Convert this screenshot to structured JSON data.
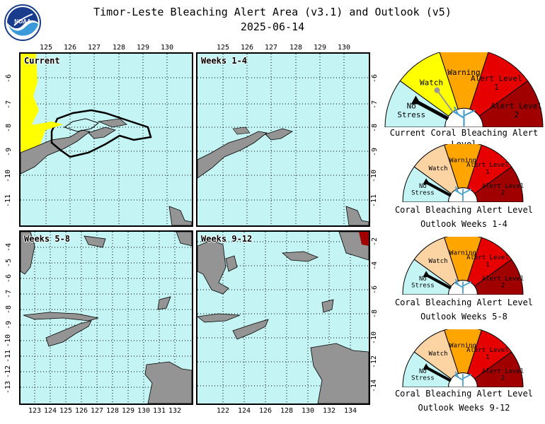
{
  "header": {
    "title_line1": "Timor-Leste Bleaching Alert Area (v3.1) and Outlook (v5)",
    "date": "2025-06-14",
    "logo_text": "NOAA"
  },
  "colors": {
    "ocean": "#c4f4f4",
    "land": "#949494",
    "watch": "#ffff00",
    "watch_light": "#fcd4a4",
    "warning": "#ffa500",
    "alert1": "#e60000",
    "alert2": "#a00000",
    "no_stress": "#c4f4f4",
    "coral_icon": "#48a0d0"
  },
  "panels": [
    {
      "id": "current",
      "label": "Current",
      "top_lon_labels": [
        "125",
        "126",
        "127",
        "128",
        "129",
        "130"
      ],
      "left_lat_labels": [
        "-6",
        "-7",
        "-8",
        "-9",
        "-10",
        "-11"
      ],
      "right_lat_labels": []
    },
    {
      "id": "weeks-1-4",
      "label": "Weeks 1-4",
      "top_lon_labels": [
        "125",
        "126",
        "127",
        "128",
        "129",
        "130"
      ],
      "left_lat_labels": [],
      "right_lat_labels": [
        "-6",
        "-7",
        "-8",
        "-9",
        "-10",
        "-11"
      ]
    },
    {
      "id": "weeks-5-8",
      "label": "Weeks 5-8",
      "bottom_lon_labels": [
        "123",
        "124",
        "125",
        "126",
        "127",
        "128",
        "129",
        "130",
        "131",
        "132"
      ],
      "left_lat_labels": [
        "-4",
        "-5",
        "-6",
        "-7",
        "-8",
        "-9",
        "-10",
        "-11",
        "-12",
        "-13"
      ],
      "right_lat_labels": []
    },
    {
      "id": "weeks-9-12",
      "label": "Weeks 9-12",
      "bottom_lon_labels": [
        "122",
        "124",
        "126",
        "128",
        "130",
        "132",
        "134"
      ],
      "left_lat_labels": [],
      "right_lat_labels": [
        "-2",
        "-4",
        "-6",
        "-8",
        "-10",
        "-12",
        "-14"
      ]
    }
  ],
  "gauges": [
    {
      "id": "current",
      "levels": [
        "No Stress",
        "Watch",
        "Warning",
        "Alert Level 1",
        "Alert Level 2"
      ],
      "watch_color": "#ffff00",
      "pointer_level": "No Stress",
      "caption_line1": "Current Coral Bleaching Alert Level",
      "caption_line2": ""
    },
    {
      "id": "weeks-1-4",
      "levels": [
        "No Stress",
        "Watch",
        "Warning",
        "Alert Level 1",
        "Alert Level 2"
      ],
      "watch_color": "#fcd4a4",
      "pointer_level": "No Stress",
      "caption_line1": "Coral Bleaching Alert Level",
      "caption_line2": "Outlook Weeks 1-4"
    },
    {
      "id": "weeks-5-8",
      "levels": [
        "No Stress",
        "Watch",
        "Warning",
        "Alert Level 1",
        "Alert Level 2"
      ],
      "watch_color": "#fcd4a4",
      "pointer_level": "No Stress",
      "caption_line1": "Coral Bleaching Alert Level",
      "caption_line2": "Outlook Weeks 5-8"
    },
    {
      "id": "weeks-9-12",
      "levels": [
        "No Stress",
        "Watch",
        "Warning",
        "Alert Level 1",
        "Alert Level 2"
      ],
      "watch_color": "#fcd4a4",
      "pointer_level": "No Stress",
      "caption_line1": "Coral Bleaching Alert Level",
      "caption_line2": "Outlook Weeks 9-12"
    }
  ]
}
